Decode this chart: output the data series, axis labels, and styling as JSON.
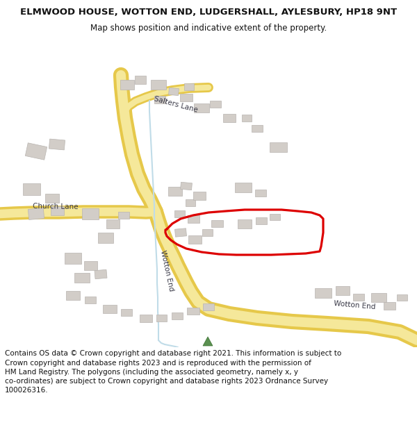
{
  "title_line1": "ELMWOOD HOUSE, WOTTON END, LUDGERSHALL, AYLESBURY, HP18 9NT",
  "title_line2": "Map shows position and indicative extent of the property.",
  "footer": "Contains OS data © Crown copyright and database right 2021. This information is subject to Crown copyright and database rights 2023 and is reproduced with the permission of HM Land Registry. The polygons (including the associated geometry, namely x, y co-ordinates) are subject to Crown copyright and database rights 2023 Ordnance Survey 100026316.",
  "map_bg": "#f7f6f0",
  "road_fill": "#f5e89a",
  "road_edge": "#e6c84a",
  "building_fill": "#d2cdc8",
  "building_edge": "#b8b4b0",
  "water_color": "#c0dce8",
  "plot_color": "#dd0000",
  "label_color": "#3a3a48",
  "green_marker": "#5a9050"
}
